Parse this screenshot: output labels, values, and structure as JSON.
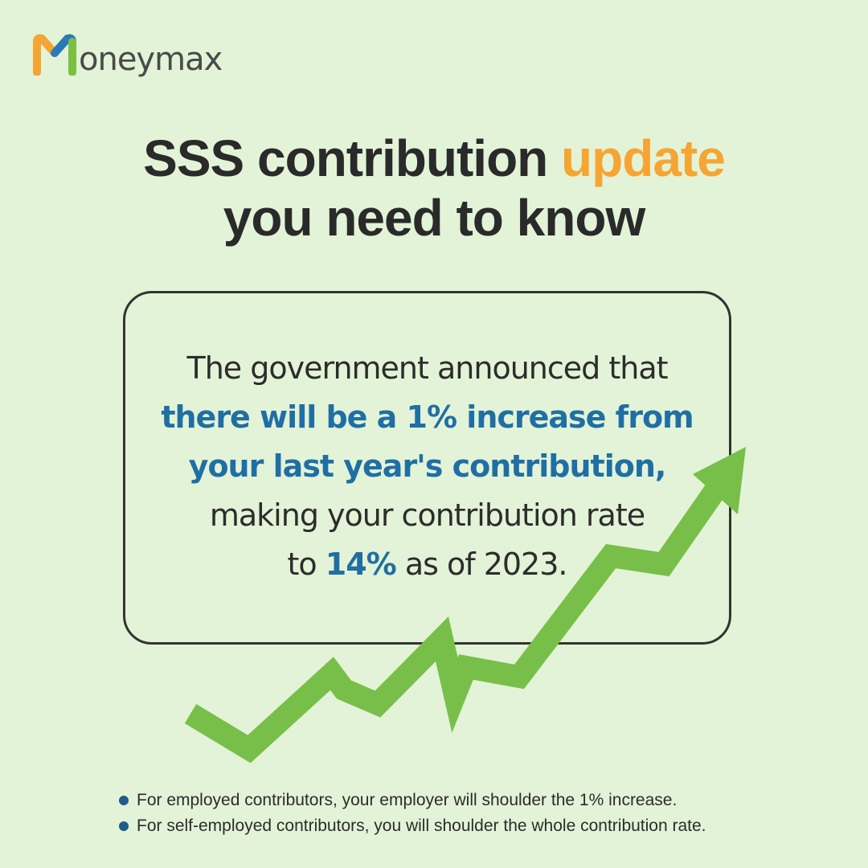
{
  "logo": {
    "text": "oneymax"
  },
  "title": {
    "line1": {
      "plain": "SSS contribution",
      "highlight": "update"
    },
    "line2": "you need to know"
  },
  "card": {
    "lines": [
      {
        "parts": [
          {
            "text": "The government announced that",
            "style": "normal"
          }
        ]
      },
      {
        "parts": [
          {
            "text": "there will be a 1% increase from",
            "style": "emphasis"
          }
        ]
      },
      {
        "parts": [
          {
            "text": "your last year's contribution,",
            "style": "emphasis"
          }
        ]
      },
      {
        "parts": [
          {
            "text": "making your contribution rate",
            "style": "normal"
          }
        ]
      },
      {
        "parts": [
          {
            "text": "to",
            "style": "normal"
          },
          {
            "text": "14%",
            "style": "emphasis"
          },
          {
            "text": "as of 2023.",
            "style": "normal"
          }
        ]
      }
    ]
  },
  "notes": [
    "For employed contributors, your employer will shoulder the 1% increase.",
    "For self-employed contributors, you will shoulder the whole contribution rate."
  ]
}
